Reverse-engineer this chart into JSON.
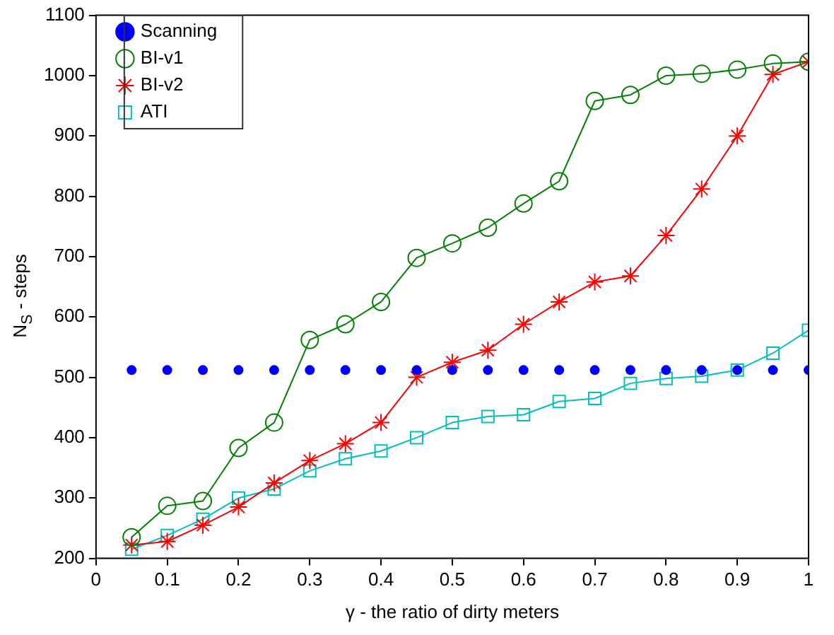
{
  "chart_data": {
    "type": "line",
    "xlabel": "γ - the ratio of dirty meters",
    "ylabel": "N$_{S}$ - steps",
    "x": [
      0.05,
      0.1,
      0.15,
      0.2,
      0.25,
      0.3,
      0.35,
      0.4,
      0.45,
      0.5,
      0.55,
      0.6,
      0.65,
      0.7,
      0.75,
      0.8,
      0.85,
      0.9,
      0.95,
      1
    ],
    "series": [
      {
        "name": "Scanning",
        "type": "scatter",
        "marker": "circle",
        "color": "#0000ff",
        "values": [
          512,
          512,
          512,
          512,
          512,
          512,
          512,
          512,
          512,
          512,
          512,
          512,
          512,
          512,
          512,
          512,
          512,
          512,
          512,
          512
        ]
      },
      {
        "name": "BI-v1",
        "marker": "circle",
        "color": "#008000",
        "values": [
          235,
          287,
          295,
          383,
          425,
          562,
          588,
          625,
          698,
          722,
          748,
          788,
          825,
          958,
          968,
          1000,
          1003,
          1010,
          1020,
          1023
        ]
      },
      {
        "name": "BI-v2",
        "marker": "cross",
        "color": "#ff0000",
        "values": [
          222,
          228,
          255,
          285,
          325,
          362,
          390,
          425,
          500,
          525,
          545,
          588,
          625,
          658,
          668,
          735,
          812,
          900,
          1002,
          1023
        ]
      },
      {
        "name": "ATI",
        "marker": "square",
        "color": "#00bfbf",
        "values": [
          215,
          238,
          265,
          300,
          315,
          345,
          365,
          378,
          400,
          425,
          435,
          438,
          460,
          465,
          490,
          498,
          502,
          512,
          540,
          578
        ]
      }
    ],
    "xlim": [
      0,
      1
    ],
    "xticks": [
      0,
      0.1,
      0.2,
      0.3,
      0.4,
      0.5,
      0.6,
      0.7,
      0.8,
      0.9,
      1
    ],
    "ylim": [
      200,
      1100
    ],
    "yticks": [
      200,
      300,
      400,
      500,
      600,
      700,
      800,
      900,
      1000,
      1100
    ],
    "grid": false,
    "legend": "top left"
  }
}
